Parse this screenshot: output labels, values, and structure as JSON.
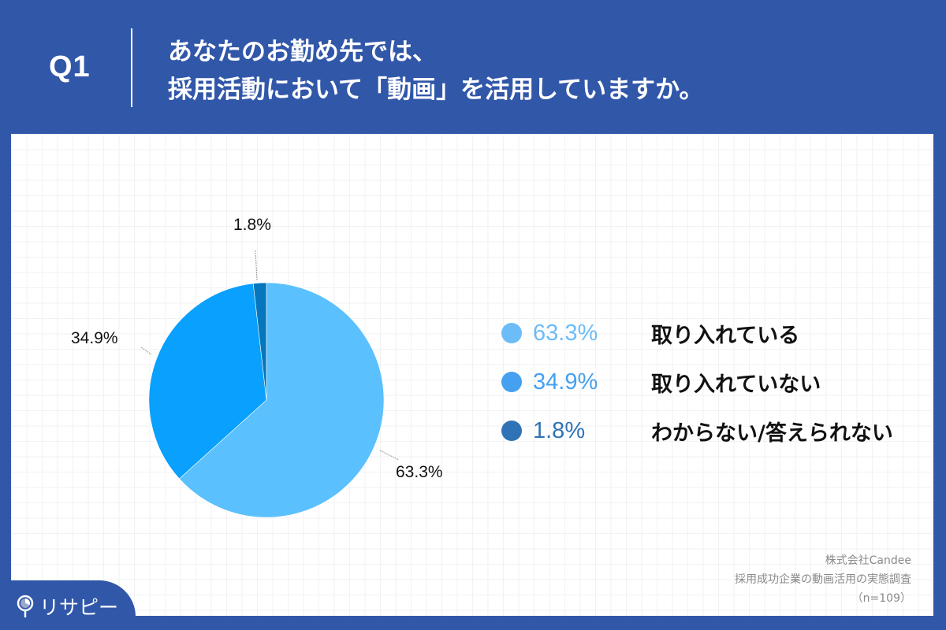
{
  "header": {
    "q_label": "Q1",
    "question_line1": "あなたのお勤め先では、",
    "question_line2": "採用活動において「動画」を活用していますか。"
  },
  "colors": {
    "background": "#3157a9",
    "slice_yes": "#5bc0fe",
    "slice_no": "#0aa0fd",
    "slice_unknown": "#0677bd",
    "legend_yes": "#6cbcf7",
    "legend_no": "#45a0f0",
    "legend_unknown": "#2f72b5"
  },
  "chart_data": {
    "type": "pie",
    "title": "あなたのお勤め先では、採用活動において「動画」を活用していますか。",
    "categories": [
      "取り入れている",
      "取り入れていない",
      "わからない/答えられない"
    ],
    "values": [
      63.3,
      34.9,
      1.8
    ],
    "unit": "%",
    "start_angle": "12 o'clock",
    "direction": "clockwise",
    "data_labels": [
      "63.3%",
      "34.9%",
      "1.8%"
    ],
    "legend_position": "right",
    "sample_size": "n=109"
  },
  "pie_labels": {
    "yes": "63.3%",
    "no": "34.9%",
    "unknown": "1.8%"
  },
  "legend": [
    {
      "pct": "63.3%",
      "label": "取り入れている"
    },
    {
      "pct": "34.9%",
      "label": "取り入れていない"
    },
    {
      "pct": "1.8%",
      "label": "わからない/答えられない"
    }
  ],
  "source": {
    "line1": "株式会社Candee",
    "line2": "採用成功企業の動画活用の実態調査",
    "line3": "（n=109）"
  },
  "logo": {
    "text": "リサピー",
    "icon": "magnifier-pie-icon"
  }
}
